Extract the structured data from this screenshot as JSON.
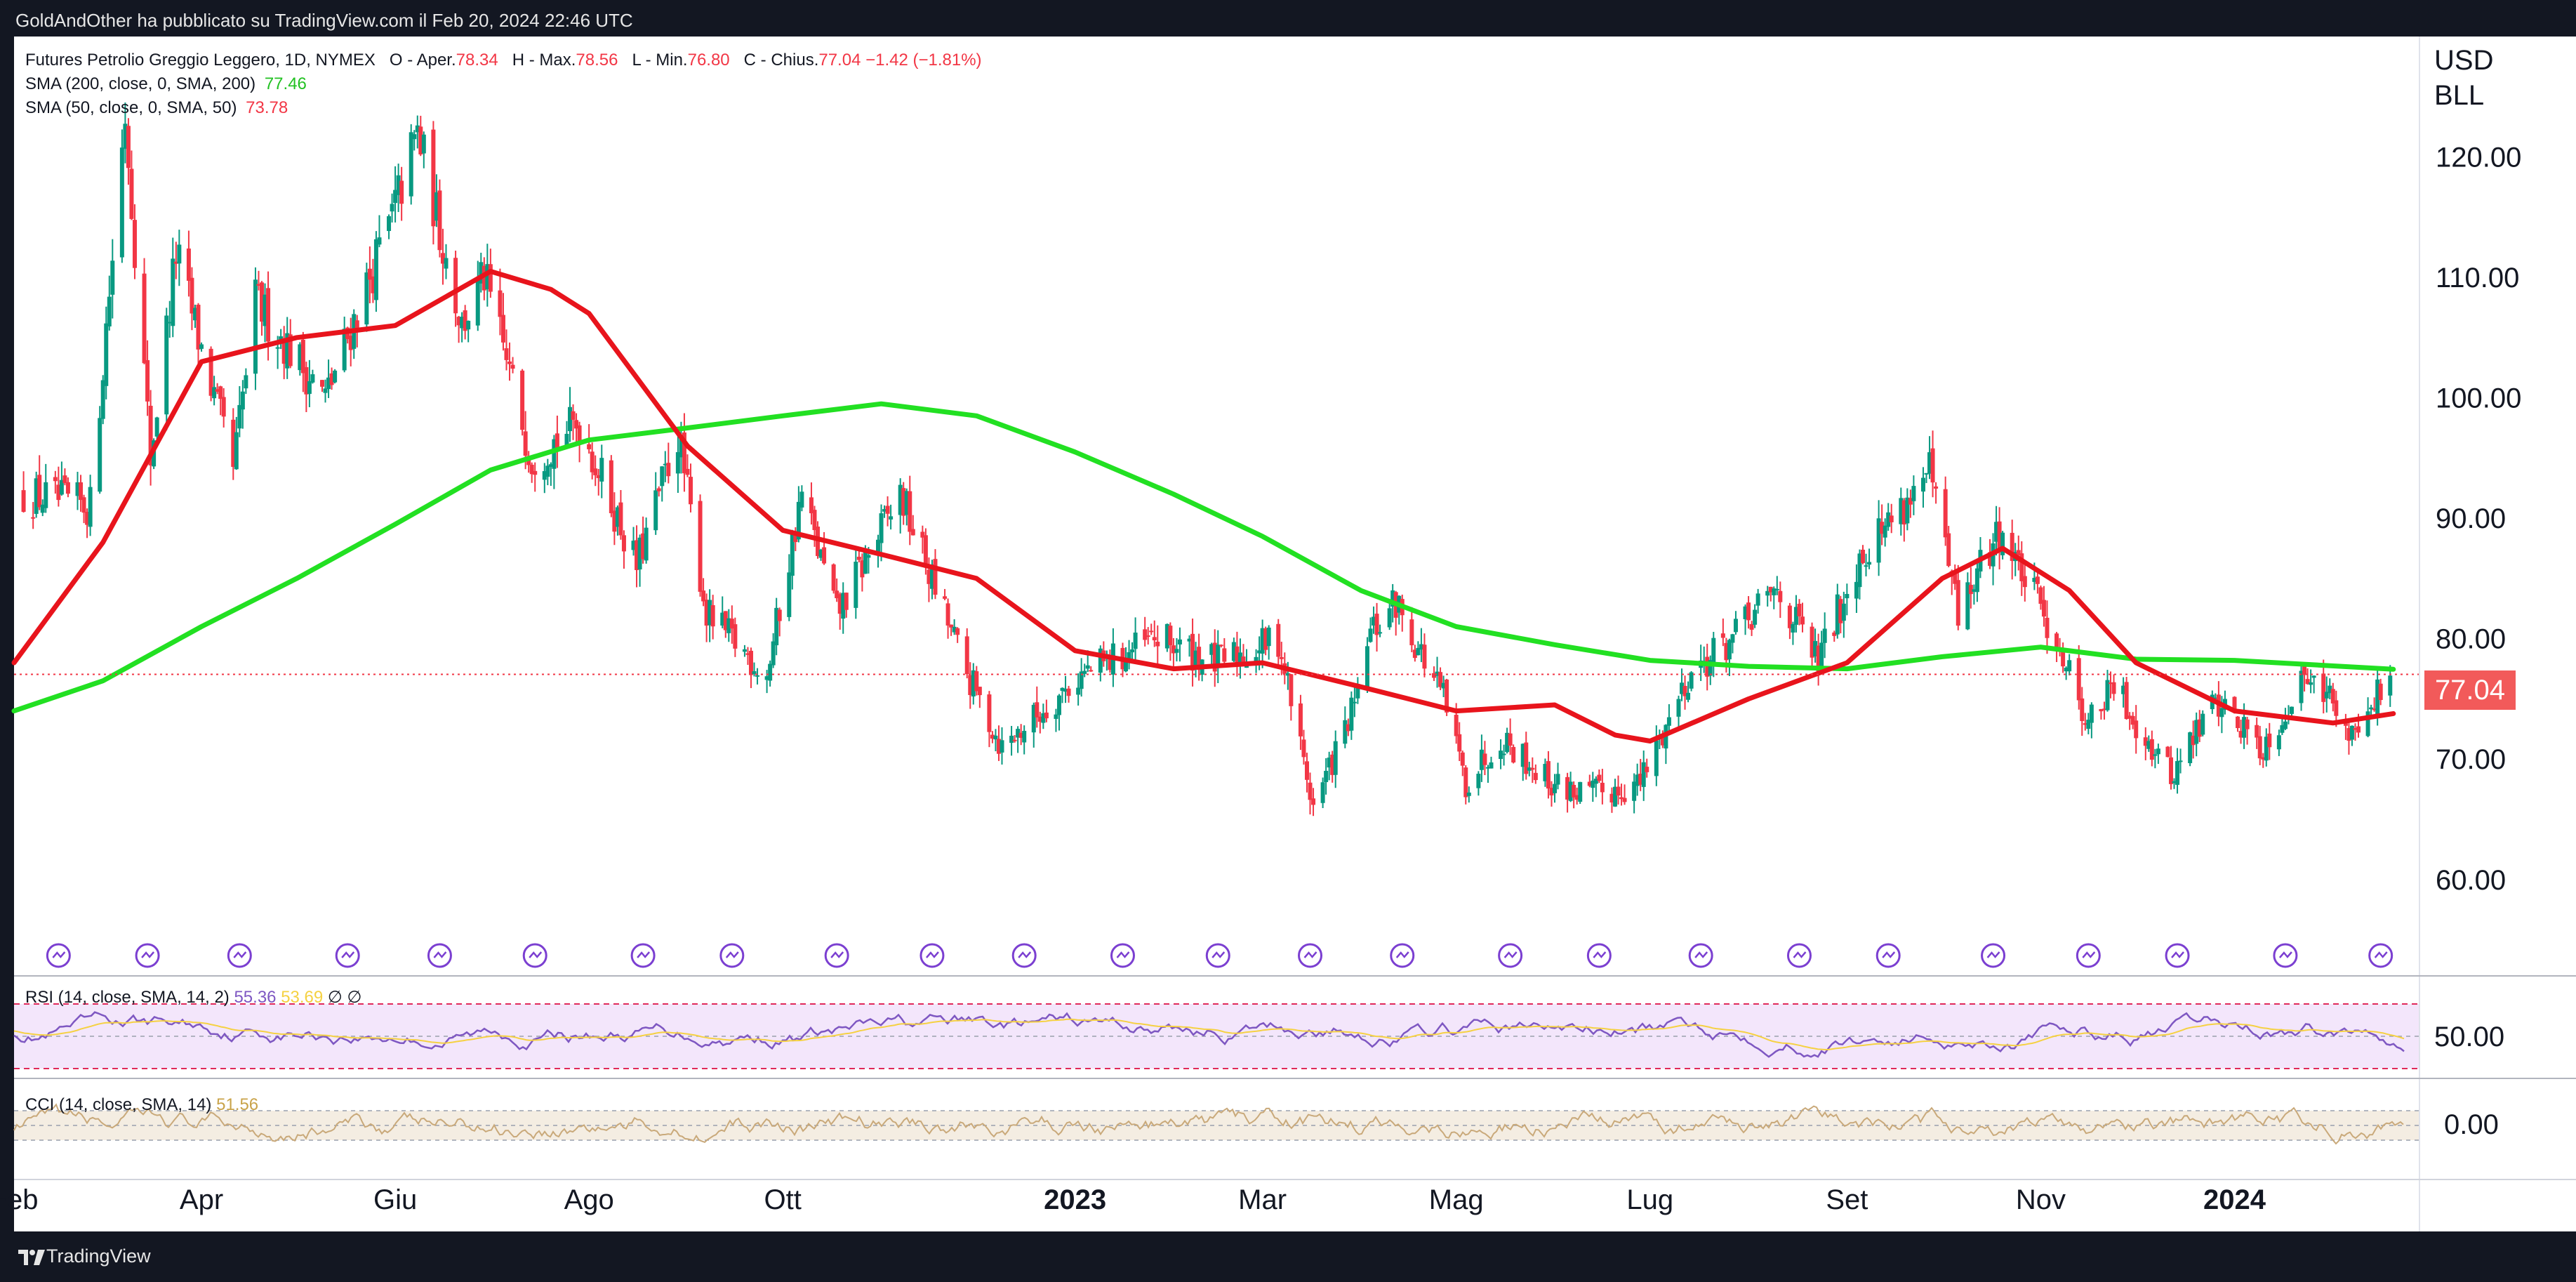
{
  "header": {
    "publisher": "GoldAndOther ha pubblicato su TradingView.com il Feb 20, 2024 22:46 UTC"
  },
  "footer": {
    "brand": "TradingView"
  },
  "legend": {
    "symbol": "Futures Petrolio Greggio Leggero, 1D, NYMEX",
    "ohlc": [
      {
        "label": "O - Aper.",
        "value": "78.34"
      },
      {
        "label": "H - Max.",
        "value": "78.56"
      },
      {
        "label": "L - Min.",
        "value": "76.80"
      },
      {
        "label": "C - Chius.",
        "value": "77.04"
      }
    ],
    "change": "−1.42 (−1.81%)",
    "sma200": {
      "label": "SMA (200, close, 0, SMA, 200)",
      "value": "77.46"
    },
    "sma50": {
      "label": "SMA (50, close, 0, SMA, 50)",
      "value": "73.78"
    }
  },
  "rsi_pane": {
    "label": "RSI (14, close, SMA, 14, 2)",
    "value1": "55.36",
    "value2": "53.69",
    "symbols": "∅ ∅",
    "scale_label": "50.00"
  },
  "cci_pane": {
    "label": "CCI (14, close, SMA, 14)",
    "value": "51.56",
    "scale_label": "0.00"
  },
  "price_scale": {
    "currency": "USD",
    "unit": "BLL",
    "last_price": "77.04"
  },
  "colors": {
    "up": "#089981",
    "down": "#f23645",
    "sma200": "#22e022",
    "sma50": "#e8141c",
    "rsi": "#7e57c2",
    "cci": "#c9a97a",
    "event_icon": "#7b3fd1"
  },
  "chart_data": {
    "type": "candlestick",
    "title": "Futures Petrolio Greggio Leggero, 1D, NYMEX",
    "ylim": [
      52,
      130
    ],
    "yticks": [
      "120.00",
      "110.00",
      "100.00",
      "90.00",
      "80.00",
      "70.00",
      "60.00"
    ],
    "ytick_values": [
      120,
      110,
      100,
      90,
      80,
      70,
      60
    ],
    "xticks": [
      "Feb",
      "Apr",
      "Giu",
      "Ago",
      "Ott",
      "2023",
      "Mar",
      "Mag",
      "Lug",
      "Set",
      "Nov",
      "2024"
    ],
    "xtick_dates": [
      "2022-02-01",
      "2022-04-01",
      "2022-06-01",
      "2022-08-01",
      "2022-10-01",
      "2023-01-01",
      "2023-03-01",
      "2023-05-01",
      "2023-07-01",
      "2023-09-01",
      "2023-11-01",
      "2024-01-01"
    ],
    "x_range": [
      "2022-02-01",
      "2024-02-28"
    ],
    "price_anchors": [
      {
        "date": "2022-02-04",
        "close": 92
      },
      {
        "date": "2022-02-25",
        "close": 91
      },
      {
        "date": "2022-03-08",
        "close": 123.7
      },
      {
        "date": "2022-03-16",
        "close": 95
      },
      {
        "date": "2022-03-24",
        "close": 112
      },
      {
        "date": "2022-04-11",
        "close": 94
      },
      {
        "date": "2022-04-18",
        "close": 108
      },
      {
        "date": "2022-05-10",
        "close": 100
      },
      {
        "date": "2022-05-31",
        "close": 115
      },
      {
        "date": "2022-06-08",
        "close": 122
      },
      {
        "date": "2022-06-22",
        "close": 106
      },
      {
        "date": "2022-06-29",
        "close": 110
      },
      {
        "date": "2022-07-14",
        "close": 95
      },
      {
        "date": "2022-07-29",
        "close": 98
      },
      {
        "date": "2022-08-16",
        "close": 86
      },
      {
        "date": "2022-08-29",
        "close": 97
      },
      {
        "date": "2022-09-07",
        "close": 82
      },
      {
        "date": "2022-09-26",
        "close": 77
      },
      {
        "date": "2022-10-07",
        "close": 92
      },
      {
        "date": "2022-10-18",
        "close": 82
      },
      {
        "date": "2022-11-07",
        "close": 92
      },
      {
        "date": "2022-11-28",
        "close": 77
      },
      {
        "date": "2022-12-09",
        "close": 71
      },
      {
        "date": "2023-01-03",
        "close": 77
      },
      {
        "date": "2023-01-27",
        "close": 80
      },
      {
        "date": "2023-02-15",
        "close": 78
      },
      {
        "date": "2023-03-06",
        "close": 80
      },
      {
        "date": "2023-03-17",
        "close": 66
      },
      {
        "date": "2023-03-31",
        "close": 75
      },
      {
        "date": "2023-04-03",
        "close": 80
      },
      {
        "date": "2023-04-12",
        "close": 83
      },
      {
        "date": "2023-04-27",
        "close": 75
      },
      {
        "date": "2023-05-04",
        "close": 68
      },
      {
        "date": "2023-05-15",
        "close": 72
      },
      {
        "date": "2023-05-31",
        "close": 68
      },
      {
        "date": "2023-06-12",
        "close": 67
      },
      {
        "date": "2023-06-28",
        "close": 68
      },
      {
        "date": "2023-07-13",
        "close": 77
      },
      {
        "date": "2023-07-27",
        "close": 80
      },
      {
        "date": "2023-08-10",
        "close": 84
      },
      {
        "date": "2023-08-23",
        "close": 78
      },
      {
        "date": "2023-09-05",
        "close": 87
      },
      {
        "date": "2023-09-27",
        "close": 93.7
      },
      {
        "date": "2023-10-06",
        "close": 82
      },
      {
        "date": "2023-10-19",
        "close": 89
      },
      {
        "date": "2023-11-06",
        "close": 80
      },
      {
        "date": "2023-11-16",
        "close": 73
      },
      {
        "date": "2023-11-24",
        "close": 76
      },
      {
        "date": "2023-12-12",
        "close": 68.6
      },
      {
        "date": "2023-12-26",
        "close": 75
      },
      {
        "date": "2024-01-10",
        "close": 71
      },
      {
        "date": "2024-01-26",
        "close": 78
      },
      {
        "date": "2024-02-05",
        "close": 72
      },
      {
        "date": "2024-02-20",
        "close": 77.04
      }
    ],
    "series": [
      {
        "name": "SMA (200, close, 0, SMA, 200)",
        "points": [
          {
            "date": "2022-02-01",
            "value": 74
          },
          {
            "date": "2022-03-01",
            "value": 76.5
          },
          {
            "date": "2022-04-01",
            "value": 81
          },
          {
            "date": "2022-05-01",
            "value": 85
          },
          {
            "date": "2022-06-01",
            "value": 89.5
          },
          {
            "date": "2022-07-01",
            "value": 94
          },
          {
            "date": "2022-08-01",
            "value": 96.5
          },
          {
            "date": "2022-09-01",
            "value": 97.5
          },
          {
            "date": "2022-10-01",
            "value": 98.5
          },
          {
            "date": "2022-11-01",
            "value": 99.5
          },
          {
            "date": "2022-12-01",
            "value": 98.5
          },
          {
            "date": "2023-01-01",
            "value": 95.5
          },
          {
            "date": "2023-02-01",
            "value": 92
          },
          {
            "date": "2023-03-01",
            "value": 88.5
          },
          {
            "date": "2023-04-01",
            "value": 84
          },
          {
            "date": "2023-05-01",
            "value": 81
          },
          {
            "date": "2023-06-01",
            "value": 79.5
          },
          {
            "date": "2023-07-01",
            "value": 78.2
          },
          {
            "date": "2023-08-01",
            "value": 77.7
          },
          {
            "date": "2023-09-01",
            "value": 77.5
          },
          {
            "date": "2023-10-01",
            "value": 78.5
          },
          {
            "date": "2023-11-01",
            "value": 79.3
          },
          {
            "date": "2023-12-01",
            "value": 78.3
          },
          {
            "date": "2024-01-01",
            "value": 78.2
          },
          {
            "date": "2024-02-20",
            "value": 77.46
          }
        ]
      },
      {
        "name": "SMA (50, close, 0, SMA, 50)",
        "points": [
          {
            "date": "2022-02-01",
            "value": 78
          },
          {
            "date": "2022-03-01",
            "value": 88
          },
          {
            "date": "2022-04-01",
            "value": 103
          },
          {
            "date": "2022-05-01",
            "value": 105
          },
          {
            "date": "2022-06-01",
            "value": 106
          },
          {
            "date": "2022-07-01",
            "value": 110.5
          },
          {
            "date": "2022-07-20",
            "value": 109
          },
          {
            "date": "2022-08-01",
            "value": 107
          },
          {
            "date": "2022-09-01",
            "value": 96
          },
          {
            "date": "2022-10-01",
            "value": 89
          },
          {
            "date": "2022-11-01",
            "value": 87
          },
          {
            "date": "2022-12-01",
            "value": 85
          },
          {
            "date": "2023-01-01",
            "value": 79
          },
          {
            "date": "2023-02-01",
            "value": 77.5
          },
          {
            "date": "2023-03-01",
            "value": 78
          },
          {
            "date": "2023-04-01",
            "value": 76
          },
          {
            "date": "2023-05-01",
            "value": 74
          },
          {
            "date": "2023-06-01",
            "value": 74.5
          },
          {
            "date": "2023-06-20",
            "value": 72
          },
          {
            "date": "2023-07-01",
            "value": 71.5
          },
          {
            "date": "2023-08-01",
            "value": 75
          },
          {
            "date": "2023-09-01",
            "value": 78
          },
          {
            "date": "2023-10-01",
            "value": 85
          },
          {
            "date": "2023-10-20",
            "value": 87.5
          },
          {
            "date": "2023-11-10",
            "value": 84
          },
          {
            "date": "2023-12-01",
            "value": 78
          },
          {
            "date": "2024-01-01",
            "value": 74
          },
          {
            "date": "2024-02-01",
            "value": 73
          },
          {
            "date": "2024-02-20",
            "value": 73.78
          }
        ]
      }
    ],
    "last_price_line": 77.04,
    "grid": false
  }
}
